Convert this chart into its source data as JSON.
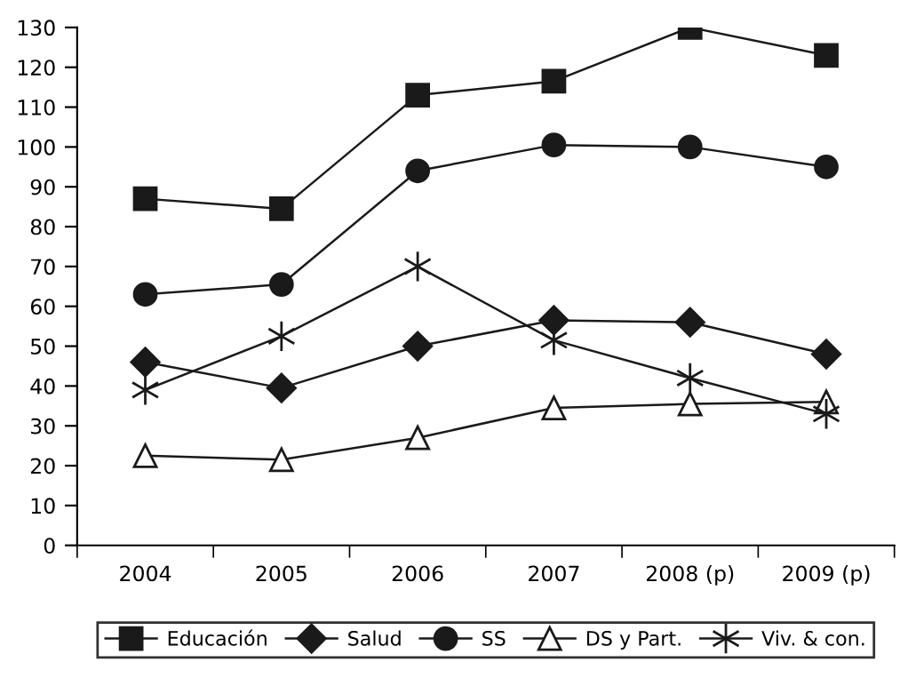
{
  "chart_data": {
    "type": "line",
    "categories": [
      "2004",
      "2005",
      "2006",
      "2007",
      "2008 (p)",
      "2009 (p)"
    ],
    "ylim": [
      0,
      130
    ],
    "yticks": [
      0,
      10,
      20,
      30,
      40,
      50,
      60,
      70,
      80,
      90,
      100,
      110,
      120,
      130
    ],
    "grid": false,
    "legend": "bottom",
    "series": [
      {
        "name": "Educación",
        "color": "#1a1a1a",
        "marker": "square",
        "values": [
          87,
          84.5,
          113,
          116.5,
          130,
          123
        ]
      },
      {
        "name": "Salud",
        "color": "#1a1a1a",
        "marker": "diamond",
        "values": [
          46,
          39.5,
          50,
          56.5,
          56,
          48
        ]
      },
      {
        "name": "SS",
        "color": "#1a1a1a",
        "marker": "circle",
        "values": [
          63,
          65.5,
          94,
          100.5,
          100,
          95
        ]
      },
      {
        "name": "DS y Part.",
        "color": "#1a1a1a",
        "marker": "triangle",
        "values": [
          22.5,
          21.5,
          27,
          34.5,
          35.5,
          36
        ]
      },
      {
        "name": "Viv. & con.",
        "color": "#1a1a1a",
        "marker": "cross",
        "values": [
          39,
          52.5,
          70,
          51.5,
          42,
          33
        ]
      }
    ]
  }
}
